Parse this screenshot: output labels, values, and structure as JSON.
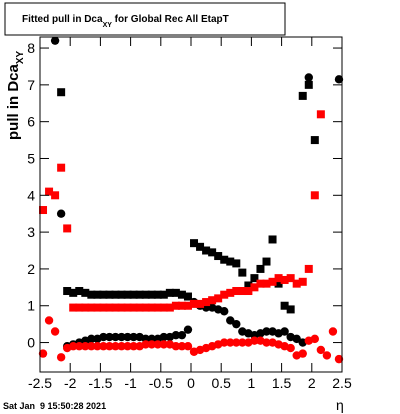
{
  "chart_data": {
    "type": "scatter",
    "title": {
      "main": "Fitted pull in Dca",
      "sub": "XY",
      "rest": " for Global Rec All EtapT"
    },
    "y_label": {
      "main": "pull in Dca",
      "sub": "XY"
    },
    "x_label": "η",
    "footer": "Sat Jan  9 15:50:28 2021",
    "xlim": [
      -2.5,
      2.5
    ],
    "ylim": [
      -0.8,
      8.3
    ],
    "xticks": [
      -2.5,
      -2,
      -1.5,
      -1,
      -0.5,
      0,
      0.5,
      1,
      1.5,
      2,
      2.5
    ],
    "yticks": [
      0,
      1,
      2,
      3,
      4,
      5,
      6,
      7,
      8
    ],
    "x": [
      -2.45,
      -2.35,
      -2.25,
      -2.15,
      -2.05,
      -1.95,
      -1.85,
      -1.75,
      -1.65,
      -1.55,
      -1.45,
      -1.35,
      -1.25,
      -1.15,
      -1.05,
      -0.95,
      -0.85,
      -0.75,
      -0.65,
      -0.55,
      -0.45,
      -0.35,
      -0.25,
      -0.15,
      -0.05,
      0.05,
      0.15,
      0.25,
      0.35,
      0.45,
      0.55,
      0.65,
      0.75,
      0.85,
      0.95,
      1.05,
      1.15,
      1.25,
      1.35,
      1.45,
      1.55,
      1.65,
      1.75,
      1.85,
      1.95,
      2.05,
      2.15,
      2.25,
      2.35,
      2.45
    ],
    "series": [
      {
        "color": "#000000",
        "marker": "square",
        "values": [
          null,
          null,
          null,
          6.8,
          1.4,
          1.35,
          1.4,
          1.35,
          1.3,
          1.3,
          1.3,
          1.3,
          1.3,
          1.3,
          1.3,
          1.3,
          1.3,
          1.3,
          1.3,
          1.3,
          1.3,
          1.35,
          1.35,
          1.3,
          1.25,
          2.7,
          2.6,
          2.5,
          2.45,
          2.35,
          2.25,
          2.2,
          2.15,
          1.9,
          1.55,
          1.75,
          2.0,
          2.2,
          2.8,
          1.6,
          1.0,
          0.9,
          null,
          6.7,
          7.0,
          5.5,
          null,
          null,
          null,
          null
        ]
      },
      {
        "color": "#000000",
        "marker": "circle",
        "values": [
          null,
          null,
          8.2,
          3.5,
          -0.1,
          -0.05,
          0.0,
          0.05,
          0.1,
          0.1,
          0.15,
          0.15,
          0.15,
          0.15,
          0.15,
          0.15,
          0.15,
          0.1,
          0.1,
          0.1,
          0.15,
          0.15,
          0.2,
          0.2,
          0.35,
          1.1,
          1.0,
          0.95,
          0.95,
          0.9,
          0.85,
          0.6,
          0.5,
          0.3,
          0.25,
          0.2,
          0.25,
          0.3,
          0.3,
          0.25,
          0.3,
          0.15,
          0.1,
          0.0,
          7.2,
          null,
          null,
          null,
          null,
          7.15
        ]
      },
      {
        "color": "#ff0000",
        "marker": "square",
        "values": [
          3.6,
          4.1,
          4.0,
          4.75,
          3.1,
          0.95,
          0.95,
          0.95,
          0.95,
          0.95,
          0.95,
          0.95,
          0.95,
          0.95,
          0.95,
          0.95,
          0.95,
          0.95,
          0.95,
          0.95,
          0.95,
          0.95,
          1.0,
          1.0,
          1.0,
          1.05,
          1.05,
          1.1,
          1.15,
          1.2,
          1.3,
          1.35,
          1.4,
          1.4,
          1.4,
          1.5,
          1.6,
          1.6,
          1.65,
          1.75,
          1.7,
          1.75,
          1.6,
          1.65,
          2.0,
          4.0,
          6.2,
          null,
          null,
          null
        ]
      },
      {
        "color": "#ff0000",
        "marker": "circle",
        "values": [
          -0.3,
          0.6,
          0.3,
          -0.4,
          -0.15,
          -0.1,
          -0.1,
          -0.1,
          -0.1,
          -0.1,
          -0.1,
          -0.1,
          -0.1,
          -0.1,
          -0.1,
          -0.1,
          -0.1,
          -0.05,
          -0.05,
          -0.05,
          -0.05,
          -0.05,
          -0.1,
          -0.1,
          -0.1,
          -0.25,
          -0.2,
          -0.15,
          -0.1,
          -0.05,
          0.0,
          0.0,
          0.0,
          0.0,
          0.0,
          0.05,
          0.05,
          0.0,
          0.0,
          -0.05,
          -0.1,
          -0.15,
          -0.35,
          -0.3,
          0.05,
          0.1,
          -0.2,
          -0.35,
          0.3,
          -0.45
        ]
      }
    ]
  }
}
